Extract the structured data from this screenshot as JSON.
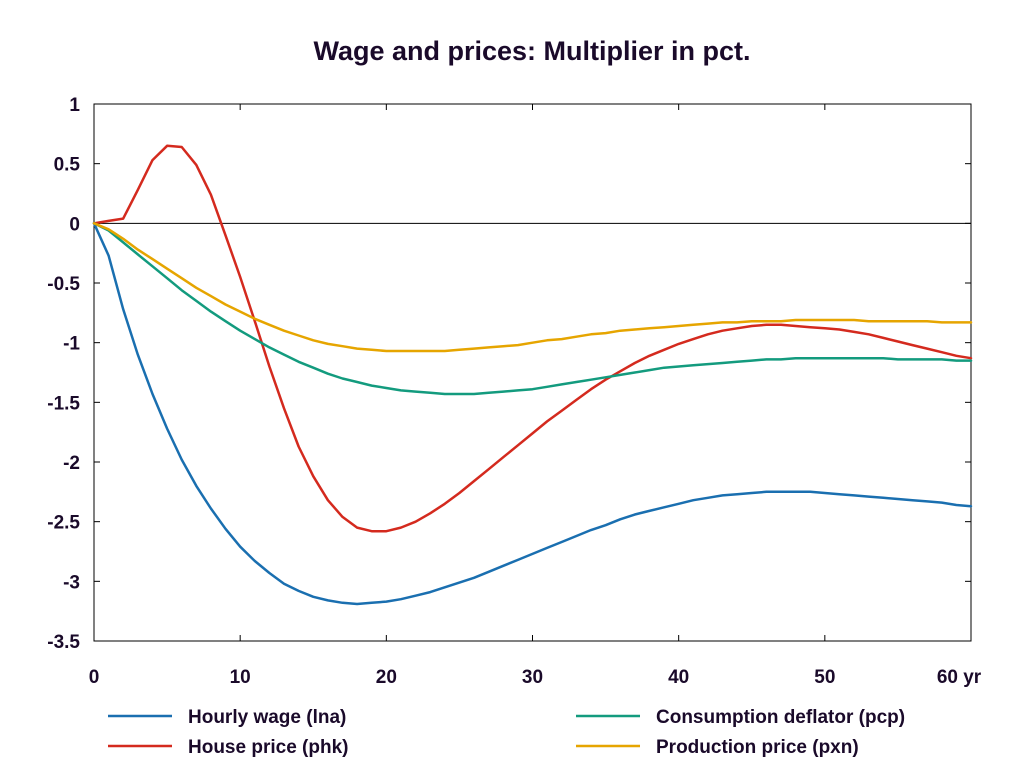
{
  "chart_data": {
    "type": "line",
    "title": "Wage and prices: Multiplier in pct.",
    "xlabel": "",
    "ylabel": "",
    "x_unit_label": "yr",
    "xlim": [
      0,
      60
    ],
    "ylim": [
      -3.5,
      1
    ],
    "xticks": [
      0,
      10,
      20,
      30,
      40,
      50,
      60
    ],
    "xtick_labels": [
      "0",
      "10",
      "20",
      "30",
      "40",
      "50",
      "60 yr"
    ],
    "yticks": [
      1,
      0.5,
      0,
      -0.5,
      -1,
      -1.5,
      -2,
      -2.5,
      -3,
      -3.5
    ],
    "ytick_labels": [
      "1",
      "0.5",
      "0",
      "-0.5",
      "-1",
      "-1.5",
      "-2",
      "-2.5",
      "-3",
      "-3.5"
    ],
    "zero_line": true,
    "grid": false,
    "legend_position": "bottom",
    "x": [
      0,
      1,
      2,
      3,
      4,
      5,
      6,
      7,
      8,
      9,
      10,
      11,
      12,
      13,
      14,
      15,
      16,
      17,
      18,
      19,
      20,
      21,
      22,
      23,
      24,
      25,
      26,
      27,
      28,
      29,
      30,
      31,
      32,
      33,
      34,
      35,
      36,
      37,
      38,
      39,
      40,
      41,
      42,
      43,
      44,
      45,
      46,
      47,
      48,
      49,
      50,
      51,
      52,
      53,
      54,
      55,
      56,
      57,
      58,
      59,
      60
    ],
    "series": [
      {
        "name": "Hourly wage (lna)",
        "color": "#1a6fb0",
        "values": [
          0,
          -0.27,
          -0.72,
          -1.1,
          -1.43,
          -1.72,
          -1.98,
          -2.2,
          -2.39,
          -2.56,
          -2.71,
          -2.83,
          -2.93,
          -3.02,
          -3.08,
          -3.13,
          -3.16,
          -3.18,
          -3.19,
          -3.18,
          -3.17,
          -3.15,
          -3.12,
          -3.09,
          -3.05,
          -3.01,
          -2.97,
          -2.92,
          -2.87,
          -2.82,
          -2.77,
          -2.72,
          -2.67,
          -2.62,
          -2.57,
          -2.53,
          -2.48,
          -2.44,
          -2.41,
          -2.38,
          -2.35,
          -2.32,
          -2.3,
          -2.28,
          -2.27,
          -2.26,
          -2.25,
          -2.25,
          -2.25,
          -2.25,
          -2.26,
          -2.27,
          -2.28,
          -2.29,
          -2.3,
          -2.31,
          -2.32,
          -2.33,
          -2.34,
          -2.36,
          -2.37
        ]
      },
      {
        "name": "House price (phk)",
        "color": "#d42a1e",
        "values": [
          0,
          0.02,
          0.04,
          0.28,
          0.53,
          0.65,
          0.64,
          0.49,
          0.24,
          -0.1,
          -0.45,
          -0.82,
          -1.2,
          -1.55,
          -1.87,
          -2.12,
          -2.32,
          -2.46,
          -2.55,
          -2.58,
          -2.58,
          -2.55,
          -2.5,
          -2.43,
          -2.35,
          -2.26,
          -2.16,
          -2.06,
          -1.96,
          -1.86,
          -1.76,
          -1.66,
          -1.57,
          -1.48,
          -1.39,
          -1.31,
          -1.24,
          -1.17,
          -1.11,
          -1.06,
          -1.01,
          -0.97,
          -0.93,
          -0.9,
          -0.88,
          -0.86,
          -0.85,
          -0.85,
          -0.86,
          -0.87,
          -0.88,
          -0.89,
          -0.91,
          -0.93,
          -0.96,
          -0.99,
          -1.02,
          -1.05,
          -1.08,
          -1.11,
          -1.13
        ]
      },
      {
        "name": "Consumption deflator (pcp)",
        "color": "#139b7e",
        "values": [
          0,
          -0.06,
          -0.16,
          -0.26,
          -0.36,
          -0.46,
          -0.56,
          -0.65,
          -0.74,
          -0.82,
          -0.9,
          -0.97,
          -1.04,
          -1.1,
          -1.16,
          -1.21,
          -1.26,
          -1.3,
          -1.33,
          -1.36,
          -1.38,
          -1.4,
          -1.41,
          -1.42,
          -1.43,
          -1.43,
          -1.43,
          -1.42,
          -1.41,
          -1.4,
          -1.39,
          -1.37,
          -1.35,
          -1.33,
          -1.31,
          -1.29,
          -1.27,
          -1.25,
          -1.23,
          -1.21,
          -1.2,
          -1.19,
          -1.18,
          -1.17,
          -1.16,
          -1.15,
          -1.14,
          -1.14,
          -1.13,
          -1.13,
          -1.13,
          -1.13,
          -1.13,
          -1.13,
          -1.13,
          -1.14,
          -1.14,
          -1.14,
          -1.14,
          -1.15,
          -1.15
        ]
      },
      {
        "name": "Production price (pxn)",
        "color": "#e6a500",
        "values": [
          0,
          -0.05,
          -0.13,
          -0.22,
          -0.3,
          -0.38,
          -0.46,
          -0.54,
          -0.61,
          -0.68,
          -0.74,
          -0.8,
          -0.85,
          -0.9,
          -0.94,
          -0.98,
          -1.01,
          -1.03,
          -1.05,
          -1.06,
          -1.07,
          -1.07,
          -1.07,
          -1.07,
          -1.07,
          -1.06,
          -1.05,
          -1.04,
          -1.03,
          -1.02,
          -1.0,
          -0.98,
          -0.97,
          -0.95,
          -0.93,
          -0.92,
          -0.9,
          -0.89,
          -0.88,
          -0.87,
          -0.86,
          -0.85,
          -0.84,
          -0.83,
          -0.83,
          -0.82,
          -0.82,
          -0.82,
          -0.81,
          -0.81,
          -0.81,
          -0.81,
          -0.81,
          -0.82,
          -0.82,
          -0.82,
          -0.82,
          -0.82,
          -0.83,
          -0.83,
          -0.83
        ]
      }
    ]
  }
}
